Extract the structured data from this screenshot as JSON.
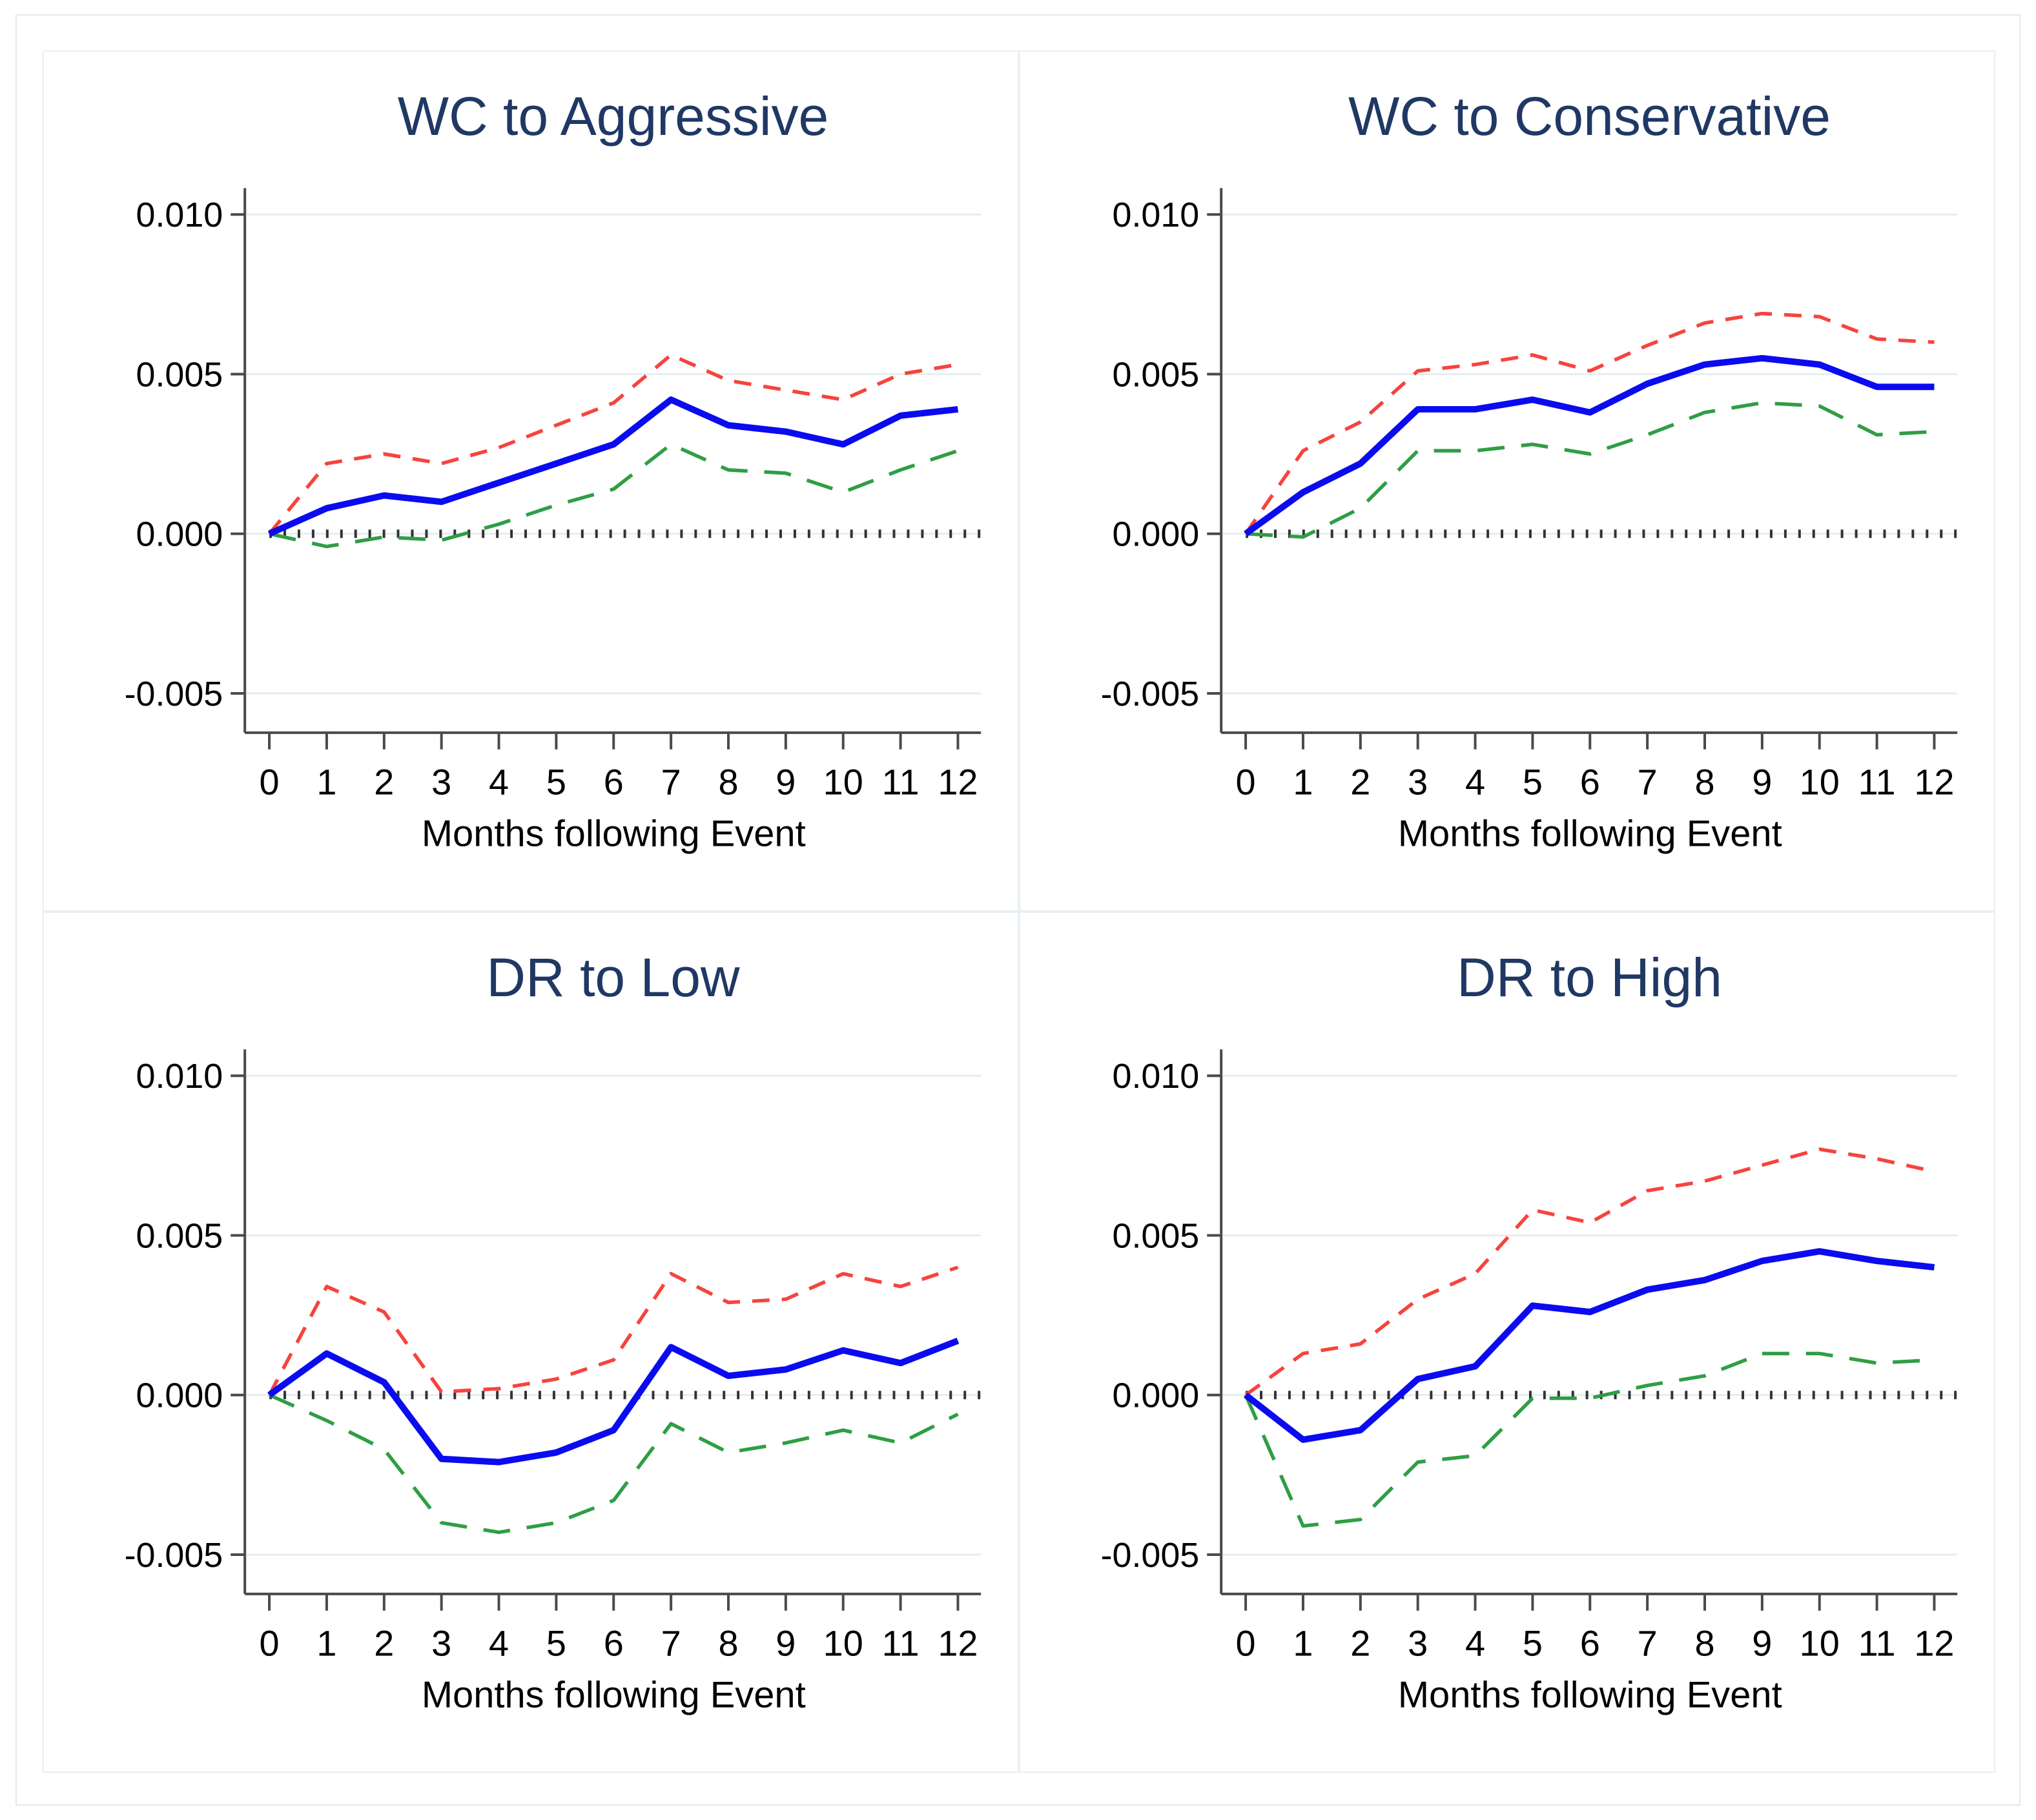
{
  "figure": {
    "background": "#ffffff",
    "panel_frame_color": "#e9f0f4",
    "outer_border_color": "#e3e8ec"
  },
  "colors": {
    "title_text": "#1f3864",
    "axis_line": "#4a4a4a",
    "tick_text": "#000000",
    "gridline": "#e2ebef",
    "zero_line": "#333333",
    "estimate": "#0b0bf0",
    "upper_band": "#f7433d",
    "lower_band": "#2f9e44"
  },
  "chart_data": [
    {
      "type": "line",
      "title": "WC to Aggressive",
      "xlabel": "Months following Event",
      "x": [
        0,
        1,
        2,
        3,
        4,
        5,
        6,
        7,
        8,
        9,
        10,
        11,
        12
      ],
      "yticks": [
        {
          "value": 0.01,
          "label": "0.010"
        },
        {
          "value": 0.005,
          "label": "0.005"
        },
        {
          "value": 0.0,
          "label": "0.000"
        },
        {
          "value": -0.005,
          "label": "-0.005"
        }
      ],
      "ylim": [
        -0.0062,
        0.0108
      ],
      "grid": true,
      "zero_line": true,
      "legend": "none",
      "series": [
        {
          "name": "estimate",
          "color": "#0b0bf0",
          "style": "solid",
          "values": [
            0.0,
            0.0008,
            0.0012,
            0.001,
            0.0016,
            0.0022,
            0.0028,
            0.0042,
            0.0034,
            0.0032,
            0.0028,
            0.0037,
            0.0039
          ]
        },
        {
          "name": "upper-band",
          "color": "#f7433d",
          "style": "dashed",
          "values": [
            0.0,
            0.0022,
            0.0025,
            0.0022,
            0.0027,
            0.0034,
            0.0041,
            0.0056,
            0.0048,
            0.0045,
            0.0042,
            0.005,
            0.0053
          ]
        },
        {
          "name": "lower-band",
          "color": "#2f9e44",
          "style": "dashed",
          "values": [
            0.0,
            -0.0004,
            -0.0001,
            -0.0002,
            0.0003,
            0.0009,
            0.0014,
            0.0028,
            0.002,
            0.0019,
            0.0013,
            0.002,
            0.0026
          ]
        }
      ]
    },
    {
      "type": "line",
      "title": "WC to Conservative",
      "xlabel": "Months following Event",
      "x": [
        0,
        1,
        2,
        3,
        4,
        5,
        6,
        7,
        8,
        9,
        10,
        11,
        12
      ],
      "yticks": [
        {
          "value": 0.01,
          "label": "0.010"
        },
        {
          "value": 0.005,
          "label": "0.005"
        },
        {
          "value": 0.0,
          "label": "0.000"
        },
        {
          "value": -0.005,
          "label": "-0.005"
        }
      ],
      "ylim": [
        -0.0062,
        0.0108
      ],
      "grid": true,
      "zero_line": true,
      "legend": "none",
      "series": [
        {
          "name": "estimate",
          "color": "#0b0bf0",
          "style": "solid",
          "values": [
            0.0,
            0.0013,
            0.0022,
            0.0039,
            0.0039,
            0.0042,
            0.0038,
            0.0047,
            0.0053,
            0.0055,
            0.0053,
            0.0046,
            0.0046
          ]
        },
        {
          "name": "upper-band",
          "color": "#f7433d",
          "style": "dashed",
          "values": [
            0.0,
            0.0026,
            0.0035,
            0.0051,
            0.0053,
            0.0056,
            0.0051,
            0.0059,
            0.0066,
            0.0069,
            0.0068,
            0.0061,
            0.006
          ]
        },
        {
          "name": "lower-band",
          "color": "#2f9e44",
          "style": "dashed",
          "values": [
            0.0,
            -0.0001,
            0.0008,
            0.0026,
            0.0026,
            0.0028,
            0.0025,
            0.0031,
            0.0038,
            0.0041,
            0.004,
            0.0031,
            0.0032
          ]
        }
      ]
    },
    {
      "type": "line",
      "title": "DR to Low",
      "xlabel": "Months following Event",
      "x": [
        0,
        1,
        2,
        3,
        4,
        5,
        6,
        7,
        8,
        9,
        10,
        11,
        12
      ],
      "yticks": [
        {
          "value": 0.01,
          "label": "0.010"
        },
        {
          "value": 0.005,
          "label": "0.005"
        },
        {
          "value": 0.0,
          "label": "0.000"
        },
        {
          "value": -0.005,
          "label": "-0.005"
        }
      ],
      "ylim": [
        -0.0062,
        0.0108
      ],
      "grid": true,
      "zero_line": true,
      "legend": "none",
      "series": [
        {
          "name": "estimate",
          "color": "#0b0bf0",
          "style": "solid",
          "values": [
            0.0,
            0.0013,
            0.0004,
            -0.002,
            -0.0021,
            -0.0018,
            -0.0011,
            0.0015,
            0.0006,
            0.0008,
            0.0014,
            0.001,
            0.0017
          ]
        },
        {
          "name": "upper-band",
          "color": "#f7433d",
          "style": "dashed",
          "values": [
            0.0,
            0.0034,
            0.0026,
            0.0001,
            0.0002,
            0.0005,
            0.0011,
            0.0038,
            0.0029,
            0.003,
            0.0038,
            0.0034,
            0.004
          ]
        },
        {
          "name": "lower-band",
          "color": "#2f9e44",
          "style": "dashed",
          "values": [
            0.0,
            -0.0008,
            -0.0017,
            -0.004,
            -0.0043,
            -0.004,
            -0.0033,
            -0.0009,
            -0.0018,
            -0.0015,
            -0.0011,
            -0.0015,
            -0.0006
          ]
        }
      ]
    },
    {
      "type": "line",
      "title": "DR to High",
      "xlabel": "Months following Event",
      "x": [
        0,
        1,
        2,
        3,
        4,
        5,
        6,
        7,
        8,
        9,
        10,
        11,
        12
      ],
      "yticks": [
        {
          "value": 0.01,
          "label": "0.010"
        },
        {
          "value": 0.005,
          "label": "0.005"
        },
        {
          "value": 0.0,
          "label": "0.000"
        },
        {
          "value": -0.005,
          "label": "-0.005"
        }
      ],
      "ylim": [
        -0.0062,
        0.0108
      ],
      "grid": true,
      "zero_line": true,
      "legend": "none",
      "series": [
        {
          "name": "estimate",
          "color": "#0b0bf0",
          "style": "solid",
          "values": [
            0.0,
            -0.0014,
            -0.0011,
            0.0005,
            0.0009,
            0.0028,
            0.0026,
            0.0033,
            0.0036,
            0.0042,
            0.0045,
            0.0042,
            0.004
          ]
        },
        {
          "name": "upper-band",
          "color": "#f7433d",
          "style": "dashed",
          "values": [
            0.0,
            0.0013,
            0.0016,
            0.003,
            0.0038,
            0.0058,
            0.0054,
            0.0064,
            0.0067,
            0.0072,
            0.0077,
            0.0074,
            0.007
          ]
        },
        {
          "name": "lower-band",
          "color": "#2f9e44",
          "style": "dashed",
          "values": [
            0.0,
            -0.0041,
            -0.0039,
            -0.0021,
            -0.0019,
            -0.0001,
            -0.0001,
            0.0003,
            0.0006,
            0.0013,
            0.0013,
            0.001,
            0.0011
          ]
        }
      ]
    }
  ]
}
